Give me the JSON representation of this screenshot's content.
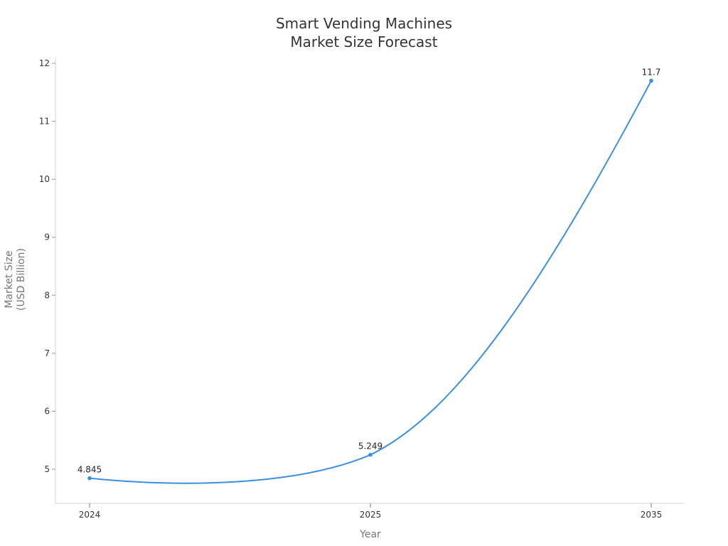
{
  "chart_data": {
    "type": "line",
    "title": "Smart Vending Machines\nMarket Size Forecast",
    "title_lines": [
      "Smart Vending Machines",
      "Market Size Forecast"
    ],
    "xlabel": "Year",
    "ylabel": "Market Size\n(USD Billion)",
    "ylabel_lines": [
      "Market Size",
      "(USD Billion)"
    ],
    "categories": [
      "2024",
      "2025",
      "2035"
    ],
    "series": [
      {
        "name": "Market Size",
        "values": [
          4.845,
          5.249,
          11.7
        ],
        "color": "#3b8fde"
      }
    ],
    "data_labels": [
      "4.845",
      "5.249",
      "11.7"
    ],
    "yticks": [
      5,
      6,
      7,
      8,
      9,
      10,
      11,
      12
    ],
    "ylim": [
      4.45,
      12.1
    ],
    "grid": false,
    "legend": "none",
    "smooth": true
  }
}
